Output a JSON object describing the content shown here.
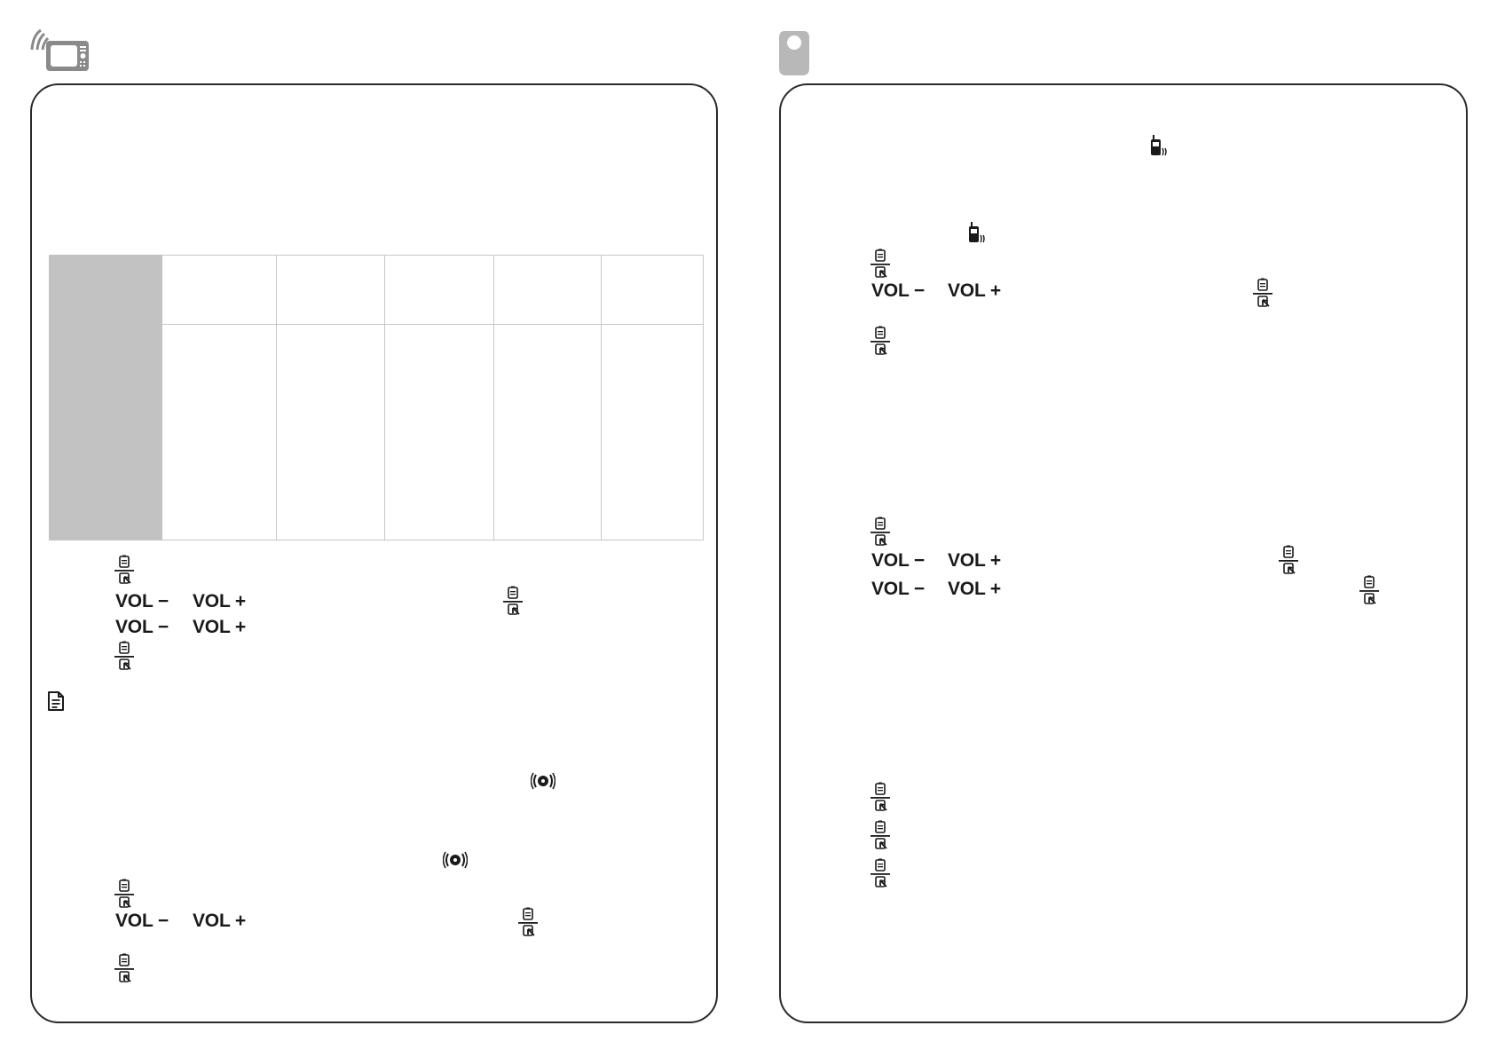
{
  "left_panel": {
    "header_icon": "monitor-parent-unit-icon",
    "table": {
      "columns": 6,
      "rows": 2,
      "header_color": "#c2c2c2",
      "border_color": "#c8c8c8"
    },
    "vol_rows_top": [
      {
        "minus": "VOL −",
        "plus": "VOL +"
      },
      {
        "minus": "VOL −",
        "plus": "VOL +"
      }
    ],
    "vol_rows_bottom": [
      {
        "minus": "VOL −",
        "plus": "VOL +"
      }
    ],
    "note_icon": "note-document-icon",
    "alarm_icon": "alarm-signal-icon"
  },
  "right_panel": {
    "header_icon": "baby-unit-icon",
    "vibrate_icon": "vibrate-phone-icon",
    "vol_rows_top": [
      {
        "minus": "VOL −",
        "plus": "VOL +"
      }
    ],
    "vol_rows_bottom": [
      {
        "minus": "VOL −",
        "plus": "VOL +"
      },
      {
        "minus": "VOL −",
        "plus": "VOL +"
      }
    ]
  },
  "colors": {
    "border": "#2a2a2a",
    "icon_gray": "#9a9a9a",
    "text": "#1a1a1a"
  }
}
